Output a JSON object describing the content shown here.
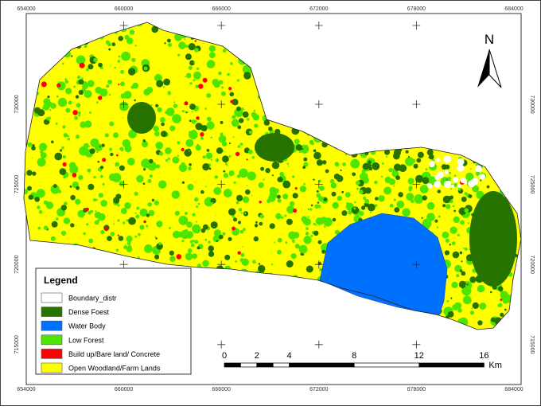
{
  "map": {
    "x_labels": [
      654000,
      660000,
      666000,
      672000,
      678000,
      684000
    ],
    "y_labels": [
      730000,
      725000,
      720000,
      715000
    ],
    "north": "N",
    "legend": {
      "title": "Legend",
      "items": [
        {
          "label": "Boundary_distr",
          "color": "#ffffff"
        },
        {
          "label": "Dense Foest",
          "color": "#267300"
        },
        {
          "label": "Water Body",
          "color": "#0070ff"
        },
        {
          "label": "Low Forest",
          "color": "#4ce600"
        },
        {
          "label": "Build up/Bare land/ Concrete",
          "color": "#ff0000"
        },
        {
          "label": "Open Woodland/Farm Lands",
          "color": "#ffff00"
        }
      ]
    },
    "scale": {
      "labels": [
        0,
        2,
        4,
        8,
        12,
        16
      ],
      "unit": "Km"
    }
  }
}
